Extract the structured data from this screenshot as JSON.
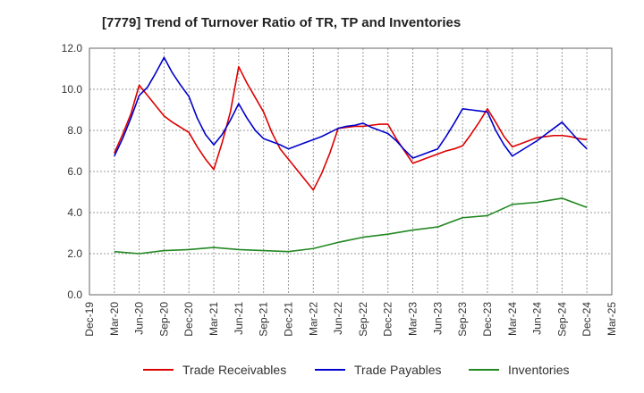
{
  "chart_data": {
    "type": "line",
    "title": "[7779]  Trend of Turnover Ratio of TR, TP and Inventories",
    "xlabel": "",
    "ylabel": "",
    "ylim": [
      0,
      12
    ],
    "yticks": [
      "0.0",
      "2.0",
      "4.0",
      "6.0",
      "8.0",
      "10.0",
      "12.0"
    ],
    "x_tick_labels": [
      "Dec-19",
      "Mar-20",
      "Jun-20",
      "Sep-20",
      "Dec-20",
      "Mar-21",
      "Jun-21",
      "Sep-21",
      "Dec-21",
      "Mar-22",
      "Jun-22",
      "Sep-22",
      "Dec-22",
      "Mar-23",
      "Jun-23",
      "Sep-23",
      "Dec-23",
      "Mar-24",
      "Jun-24",
      "Sep-24",
      "Dec-24",
      "Mar-25"
    ],
    "grid": true,
    "legend_position": "bottom",
    "series": [
      {
        "name": "Trade Receivables",
        "color": "#dd0000",
        "points": [
          [
            "Mar-20",
            6.9
          ],
          [
            "Apr-20",
            7.8
          ],
          [
            "May-20",
            8.8
          ],
          [
            "Jun-20",
            10.2
          ],
          [
            "Jul-20",
            9.7
          ],
          [
            "Aug-20",
            9.2
          ],
          [
            "Sep-20",
            8.7
          ],
          [
            "Oct-20",
            8.4
          ],
          [
            "Nov-20",
            8.15
          ],
          [
            "Dec-20",
            7.9
          ],
          [
            "Jan-21",
            7.2
          ],
          [
            "Feb-21",
            6.6
          ],
          [
            "Mar-21",
            6.1
          ],
          [
            "Apr-21",
            7.4
          ],
          [
            "May-21",
            8.9
          ],
          [
            "Jun-21",
            11.1
          ],
          [
            "Jul-21",
            10.3
          ],
          [
            "Aug-21",
            9.6
          ],
          [
            "Sep-21",
            8.9
          ],
          [
            "Oct-21",
            7.9
          ],
          [
            "Nov-21",
            7.1
          ],
          [
            "Dec-21",
            6.6
          ],
          [
            "Jan-22",
            6.1
          ],
          [
            "Feb-22",
            5.6
          ],
          [
            "Mar-22",
            5.1
          ],
          [
            "Apr-22",
            5.9
          ],
          [
            "May-22",
            6.9
          ],
          [
            "Jun-22",
            8.1
          ],
          [
            "Jul-22",
            8.15
          ],
          [
            "Aug-22",
            8.2
          ],
          [
            "Sep-22",
            8.2
          ],
          [
            "Oct-22",
            8.25
          ],
          [
            "Nov-22",
            8.3
          ],
          [
            "Dec-22",
            8.3
          ],
          [
            "Jan-23",
            7.6
          ],
          [
            "Feb-23",
            7.0
          ],
          [
            "Mar-23",
            6.4
          ],
          [
            "Apr-23",
            6.55
          ],
          [
            "May-23",
            6.7
          ],
          [
            "Jun-23",
            6.85
          ],
          [
            "Jul-23",
            7.0
          ],
          [
            "Aug-23",
            7.1
          ],
          [
            "Sep-23",
            7.25
          ],
          [
            "Oct-23",
            7.8
          ],
          [
            "Nov-23",
            8.4
          ],
          [
            "Dec-23",
            9.05
          ],
          [
            "Jan-24",
            8.4
          ],
          [
            "Feb-24",
            7.7
          ],
          [
            "Mar-24",
            7.2
          ],
          [
            "Apr-24",
            7.35
          ],
          [
            "May-24",
            7.5
          ],
          [
            "Jun-24",
            7.65
          ],
          [
            "Jul-24",
            7.7
          ],
          [
            "Aug-24",
            7.75
          ],
          [
            "Sep-24",
            7.75
          ],
          [
            "Oct-24",
            7.7
          ],
          [
            "Nov-24",
            7.6
          ],
          [
            "Dec-24",
            7.55
          ]
        ]
      },
      {
        "name": "Trade Payables",
        "color": "#0000cc",
        "points": [
          [
            "Mar-20",
            6.75
          ],
          [
            "Apr-20",
            7.6
          ],
          [
            "May-20",
            8.6
          ],
          [
            "Jun-20",
            9.7
          ],
          [
            "Jul-20",
            10.1
          ],
          [
            "Aug-20",
            10.8
          ],
          [
            "Sep-20",
            11.55
          ],
          [
            "Oct-20",
            10.8
          ],
          [
            "Nov-20",
            10.2
          ],
          [
            "Dec-20",
            9.65
          ],
          [
            "Jan-21",
            8.6
          ],
          [
            "Feb-21",
            7.8
          ],
          [
            "Mar-21",
            7.3
          ],
          [
            "Apr-21",
            7.8
          ],
          [
            "May-21",
            8.5
          ],
          [
            "Jun-21",
            9.3
          ],
          [
            "Jul-21",
            8.6
          ],
          [
            "Aug-21",
            8.0
          ],
          [
            "Sep-21",
            7.6
          ],
          [
            "Oct-21",
            7.45
          ],
          [
            "Nov-21",
            7.3
          ],
          [
            "Dec-21",
            7.1
          ],
          [
            "Jan-22",
            7.25
          ],
          [
            "Feb-22",
            7.4
          ],
          [
            "Mar-22",
            7.55
          ],
          [
            "Apr-22",
            7.7
          ],
          [
            "May-22",
            7.9
          ],
          [
            "Jun-22",
            8.1
          ],
          [
            "Jul-22",
            8.2
          ],
          [
            "Aug-22",
            8.25
          ],
          [
            "Sep-22",
            8.35
          ],
          [
            "Oct-22",
            8.15
          ],
          [
            "Nov-22",
            8.0
          ],
          [
            "Dec-22",
            7.85
          ],
          [
            "Jan-23",
            7.5
          ],
          [
            "Feb-23",
            7.05
          ],
          [
            "Mar-23",
            6.65
          ],
          [
            "Apr-23",
            6.8
          ],
          [
            "May-23",
            6.95
          ],
          [
            "Jun-23",
            7.1
          ],
          [
            "Jul-23",
            7.7
          ],
          [
            "Aug-23",
            8.35
          ],
          [
            "Sep-23",
            9.05
          ],
          [
            "Oct-23",
            9.0
          ],
          [
            "Nov-23",
            8.95
          ],
          [
            "Dec-23",
            8.9
          ],
          [
            "Jan-24",
            8.0
          ],
          [
            "Feb-24",
            7.3
          ],
          [
            "Mar-24",
            6.75
          ],
          [
            "Apr-24",
            7.0
          ],
          [
            "May-24",
            7.25
          ],
          [
            "Jun-24",
            7.5
          ],
          [
            "Jul-24",
            7.8
          ],
          [
            "Aug-24",
            8.1
          ],
          [
            "Sep-24",
            8.4
          ],
          [
            "Oct-24",
            7.95
          ],
          [
            "Nov-24",
            7.5
          ],
          [
            "Dec-24",
            7.1
          ]
        ]
      },
      {
        "name": "Inventories",
        "color": "#228822",
        "points": [
          [
            "Mar-20",
            2.1
          ],
          [
            "Jun-20",
            2.0
          ],
          [
            "Sep-20",
            2.15
          ],
          [
            "Dec-20",
            2.2
          ],
          [
            "Mar-21",
            2.3
          ],
          [
            "Jun-21",
            2.2
          ],
          [
            "Sep-21",
            2.15
          ],
          [
            "Dec-21",
            2.1
          ],
          [
            "Mar-22",
            2.25
          ],
          [
            "Jun-22",
            2.55
          ],
          [
            "Sep-22",
            2.8
          ],
          [
            "Dec-22",
            2.95
          ],
          [
            "Mar-23",
            3.15
          ],
          [
            "Jun-23",
            3.3
          ],
          [
            "Sep-23",
            3.75
          ],
          [
            "Dec-23",
            3.85
          ],
          [
            "Mar-24",
            4.4
          ],
          [
            "Jun-24",
            4.5
          ],
          [
            "Sep-24",
            4.7
          ],
          [
            "Dec-24",
            4.25
          ]
        ]
      }
    ]
  }
}
